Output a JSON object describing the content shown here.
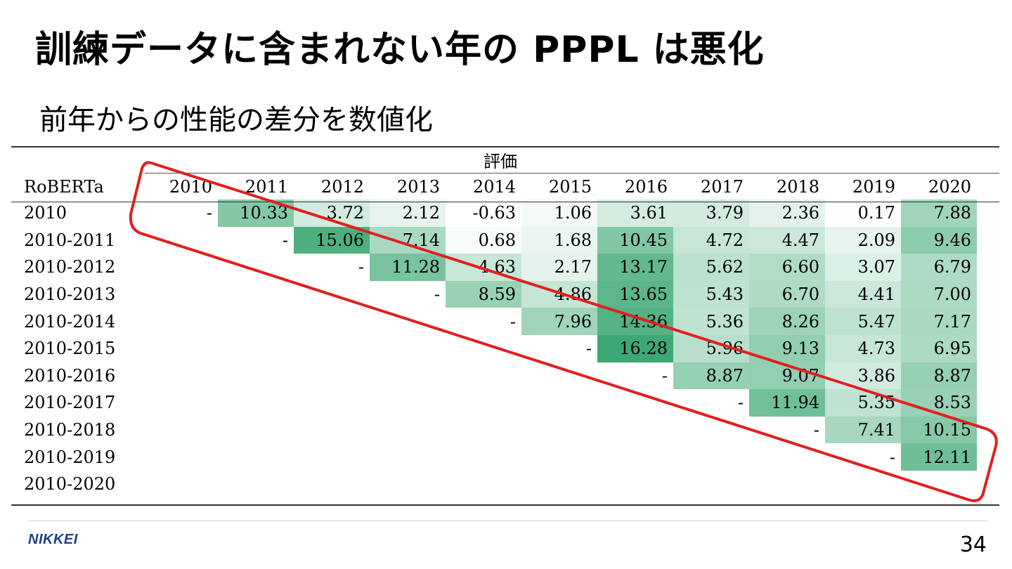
{
  "slide": {
    "title": "訓練データに含まれない年の PPPL は悪化",
    "subtitle": "前年からの性能の差分を数値化",
    "logo": "NIKKEI",
    "page_number": "34"
  },
  "table": {
    "group_header": "評価",
    "row_header": "RoBERTa",
    "columns": [
      "2010",
      "2011",
      "2012",
      "2013",
      "2014",
      "2015",
      "2016",
      "2017",
      "2018",
      "2019",
      "2020"
    ],
    "rows": [
      {
        "label": "2010",
        "cells": [
          "-",
          "10.33",
          "3.72",
          "2.12",
          "-0.63",
          "1.06",
          "3.61",
          "3.79",
          "2.36",
          "0.17",
          "7.88"
        ]
      },
      {
        "label": "2010-2011",
        "cells": [
          "",
          "-",
          "15.06",
          "7.14",
          "0.68",
          "1.68",
          "10.45",
          "4.72",
          "4.47",
          "2.09",
          "9.46"
        ]
      },
      {
        "label": "2010-2012",
        "cells": [
          "",
          "",
          "-",
          "11.28",
          "4.63",
          "2.17",
          "13.17",
          "5.62",
          "6.60",
          "3.07",
          "6.79"
        ]
      },
      {
        "label": "2010-2013",
        "cells": [
          "",
          "",
          "",
          "-",
          "8.59",
          "4.86",
          "13.65",
          "5.43",
          "6.70",
          "4.41",
          "7.00"
        ]
      },
      {
        "label": "2010-2014",
        "cells": [
          "",
          "",
          "",
          "",
          "-",
          "7.96",
          "14.36",
          "5.36",
          "8.26",
          "5.47",
          "7.17"
        ]
      },
      {
        "label": "2010-2015",
        "cells": [
          "",
          "",
          "",
          "",
          "",
          "-",
          "16.28",
          "5.96",
          "9.13",
          "4.73",
          "6.95"
        ]
      },
      {
        "label": "2010-2016",
        "cells": [
          "",
          "",
          "",
          "",
          "",
          "",
          "-",
          "8.87",
          "9.07",
          "3.86",
          "8.87"
        ]
      },
      {
        "label": "2010-2017",
        "cells": [
          "",
          "",
          "",
          "",
          "",
          "",
          "",
          "-",
          "11.94",
          "5.35",
          "8.53"
        ]
      },
      {
        "label": "2010-2018",
        "cells": [
          "",
          "",
          "",
          "",
          "",
          "",
          "",
          "",
          "-",
          "7.41",
          "10.15"
        ]
      },
      {
        "label": "2010-2019",
        "cells": [
          "",
          "",
          "",
          "",
          "",
          "",
          "",
          "",
          "",
          "-",
          "12.11"
        ]
      },
      {
        "label": "2010-2020",
        "cells": [
          "",
          "",
          "",
          "",
          "",
          "",
          "",
          "",
          "",
          "",
          ""
        ]
      }
    ]
  },
  "colors": {
    "heat_low": "#ffffff",
    "heat_high": "#3da873",
    "annotation": "#e02020",
    "logo": "#1d3f8f"
  }
}
